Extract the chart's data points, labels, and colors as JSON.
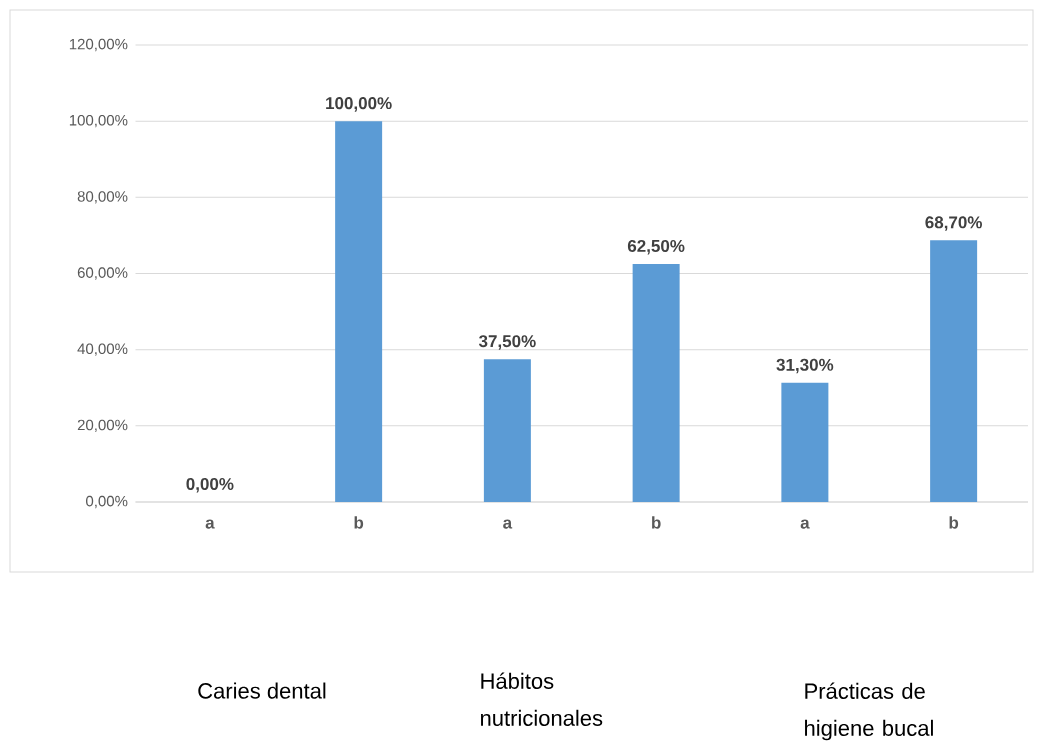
{
  "chart_data": {
    "type": "bar",
    "categories": [
      "a",
      "b",
      "a",
      "b",
      "a",
      "b"
    ],
    "values": [
      0,
      100,
      37.5,
      62.5,
      31.3,
      68.7
    ],
    "value_labels": [
      "0,00%",
      "100,00%",
      "37,50%",
      "62,50%",
      "31,30%",
      "68,70%"
    ],
    "color": "#5b9bd5",
    "ylim": [
      0,
      120
    ],
    "yticks": [
      {
        "value": 0,
        "label": "0,00%"
      },
      {
        "value": 20,
        "label": "20,00%"
      },
      {
        "value": 40,
        "label": "40,00%"
      },
      {
        "value": 60,
        "label": "60,00%"
      },
      {
        "value": 80,
        "label": "80,00%"
      },
      {
        "value": 100,
        "label": "100,00%"
      },
      {
        "value": 120,
        "label": "120,00%"
      }
    ],
    "grid": "y",
    "annotations": [
      "Caries dental",
      "Hábitos nutricionales",
      "Prácticas de higiene bucal"
    ]
  }
}
